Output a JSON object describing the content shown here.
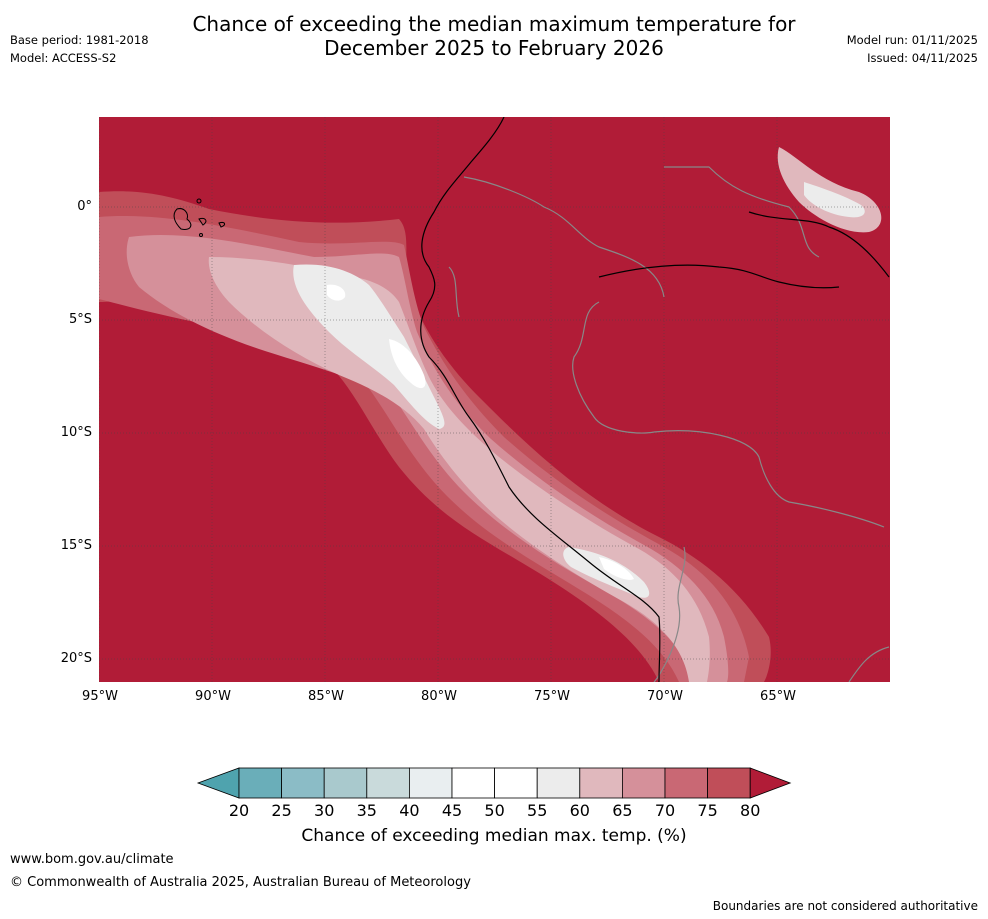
{
  "title_line1": "Chance of exceeding the median maximum temperature for",
  "title_line2": "December 2025 to February 2026",
  "header_left": {
    "base_period": "Base period: 1981-2018",
    "model": "Model: ACCESS-S2"
  },
  "header_right": {
    "model_run": "Model run: 01/11/2025",
    "issued": "Issued: 04/11/2025"
  },
  "map": {
    "lat_labels": [
      "0°",
      "5°S",
      "10°S",
      "15°S",
      "20°S"
    ],
    "lon_labels": [
      "95°W",
      "90°W",
      "85°W",
      "80°W",
      "75°W",
      "70°W",
      "65°W"
    ],
    "background_category": "80+",
    "lat_range": [
      -21.0,
      4.0
    ],
    "lon_range": [
      -95.0,
      -60.0
    ]
  },
  "colorbar": {
    "ticks": [
      "20",
      "25",
      "30",
      "35",
      "40",
      "45",
      "50",
      "55",
      "60",
      "65",
      "70",
      "75",
      "80"
    ],
    "colors": [
      "#4fa3ae",
      "#6aaeb9",
      "#8bbcc6",
      "#a9c9cd",
      "#c9dadb",
      "#e9eef0",
      "#ffffff",
      "#ffffff",
      "#ececec",
      "#e0b8bd",
      "#d5909a",
      "#c96874",
      "#c04e59",
      "#b11c37"
    ],
    "label": "Chance of exceeding median max. temp. (%)"
  },
  "footer": {
    "url": "www.bom.gov.au/climate",
    "copyright": "© Commonwealth of Australia 2025, Australian Bureau of Meteorology",
    "note": "Boundaries are not considered authoritative"
  }
}
